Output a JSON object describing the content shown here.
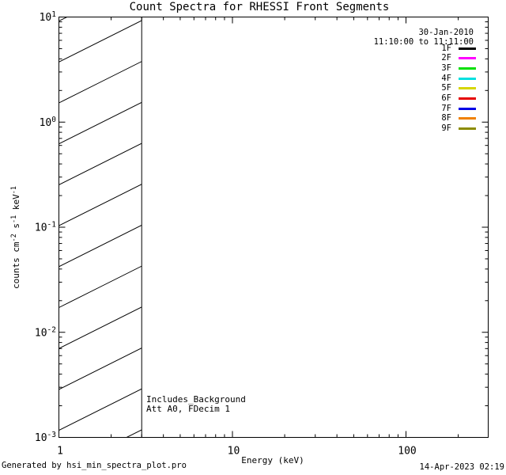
{
  "colors": {
    "background": "#ffffff",
    "foreground": "#000000"
  },
  "title": "Count Spectra for RHESSI Front Segments",
  "header": {
    "date": "30-Jan-2010",
    "time_range": "11:10:00 to 11:11:00"
  },
  "annotations": {
    "line1": "Includes_Background",
    "line2": "Att A0, FDecim 1"
  },
  "footer": {
    "left": "Generated by hsi_min_spectra_plot.pro",
    "right": "14-Apr-2023 02:19"
  },
  "axes": {
    "x": {
      "label": "Energy (keV)",
      "scale": "log",
      "ticks": [
        "1",
        "10",
        "100"
      ]
    },
    "y": {
      "scale": "log",
      "tick_base": "10",
      "tick_exponents": [
        "1",
        "0",
        "-1",
        "-2",
        "-3"
      ],
      "title_segments": [
        {
          "text": "counts cm"
        },
        {
          "sup": "-2"
        },
        {
          "text": " s"
        },
        {
          "sup": "-1"
        },
        {
          "text": " keV"
        },
        {
          "sup": "-1"
        }
      ]
    }
  },
  "chart_data": {
    "type": "line",
    "title": "Count Spectra for RHESSI Front Segments",
    "xlabel": "Energy (keV)",
    "ylabel": "counts cm^-2 s^-1 keV^-1",
    "x_scale": "log",
    "y_scale": "log",
    "xlim": [
      1,
      300
    ],
    "ylim": [
      0.001,
      10
    ],
    "x_ticks": [
      1,
      10,
      100
    ],
    "y_ticks": [
      10,
      1,
      0.1,
      0.01,
      0.001
    ],
    "grid": false,
    "legend_position": "top-right",
    "series": [
      {
        "name": "1F",
        "color": "#000000",
        "values": []
      },
      {
        "name": "2F",
        "color": "#ff00ff",
        "values": []
      },
      {
        "name": "3F",
        "color": "#00e000",
        "values": []
      },
      {
        "name": "4F",
        "color": "#00e0e0",
        "values": []
      },
      {
        "name": "5F",
        "color": "#d6d600",
        "values": []
      },
      {
        "name": "6F",
        "color": "#e60000",
        "values": []
      },
      {
        "name": "7F",
        "color": "#0000e6",
        "values": []
      },
      {
        "name": "8F",
        "color": "#f08000",
        "values": []
      },
      {
        "name": "9F",
        "color": "#8c8c00",
        "values": []
      }
    ],
    "hatched_region": {
      "x": [
        1,
        3
      ],
      "y": [
        0.001,
        10
      ],
      "style": "diagonal-hatch"
    }
  }
}
